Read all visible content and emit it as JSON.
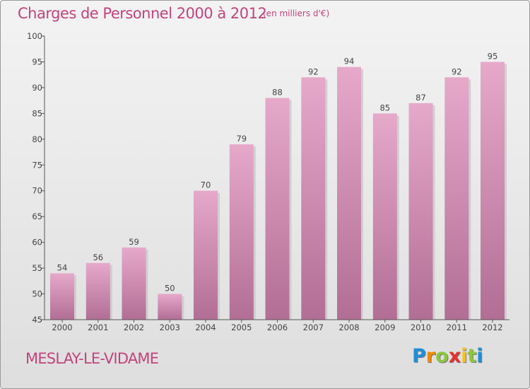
{
  "chart_data": {
    "type": "bar",
    "title": "Charges de Personnel 2000 à 2012",
    "subtitle": "(en milliers d'€)",
    "categories": [
      "2000",
      "2001",
      "2002",
      "2003",
      "2004",
      "2005",
      "2006",
      "2007",
      "2008",
      "2009",
      "2010",
      "2011",
      "2012"
    ],
    "values": [
      54,
      56,
      59,
      50,
      70,
      79,
      88,
      92,
      94,
      85,
      87,
      92,
      95
    ],
    "ylim": [
      45,
      100
    ],
    "yticks": [
      45,
      50,
      55,
      60,
      65,
      70,
      75,
      80,
      85,
      90,
      95,
      100
    ],
    "xlabel": "",
    "ylabel": "",
    "grid": false,
    "bar_color_top": "#e6a9ca",
    "bar_color_bottom": "#b26e95"
  },
  "commune": "MESLAY-LE-VIDAME",
  "brand": {
    "letters": [
      "P",
      "r",
      "o",
      "x",
      "i",
      "t",
      "i"
    ],
    "colors": [
      "#1f8fd6",
      "#f08a00",
      "#8cc63f",
      "#e4322b",
      "#f6c21a",
      "#8cc63f",
      "#1f8fd6"
    ]
  },
  "colors": {
    "title": "#c2437e",
    "axis": "#555555"
  }
}
